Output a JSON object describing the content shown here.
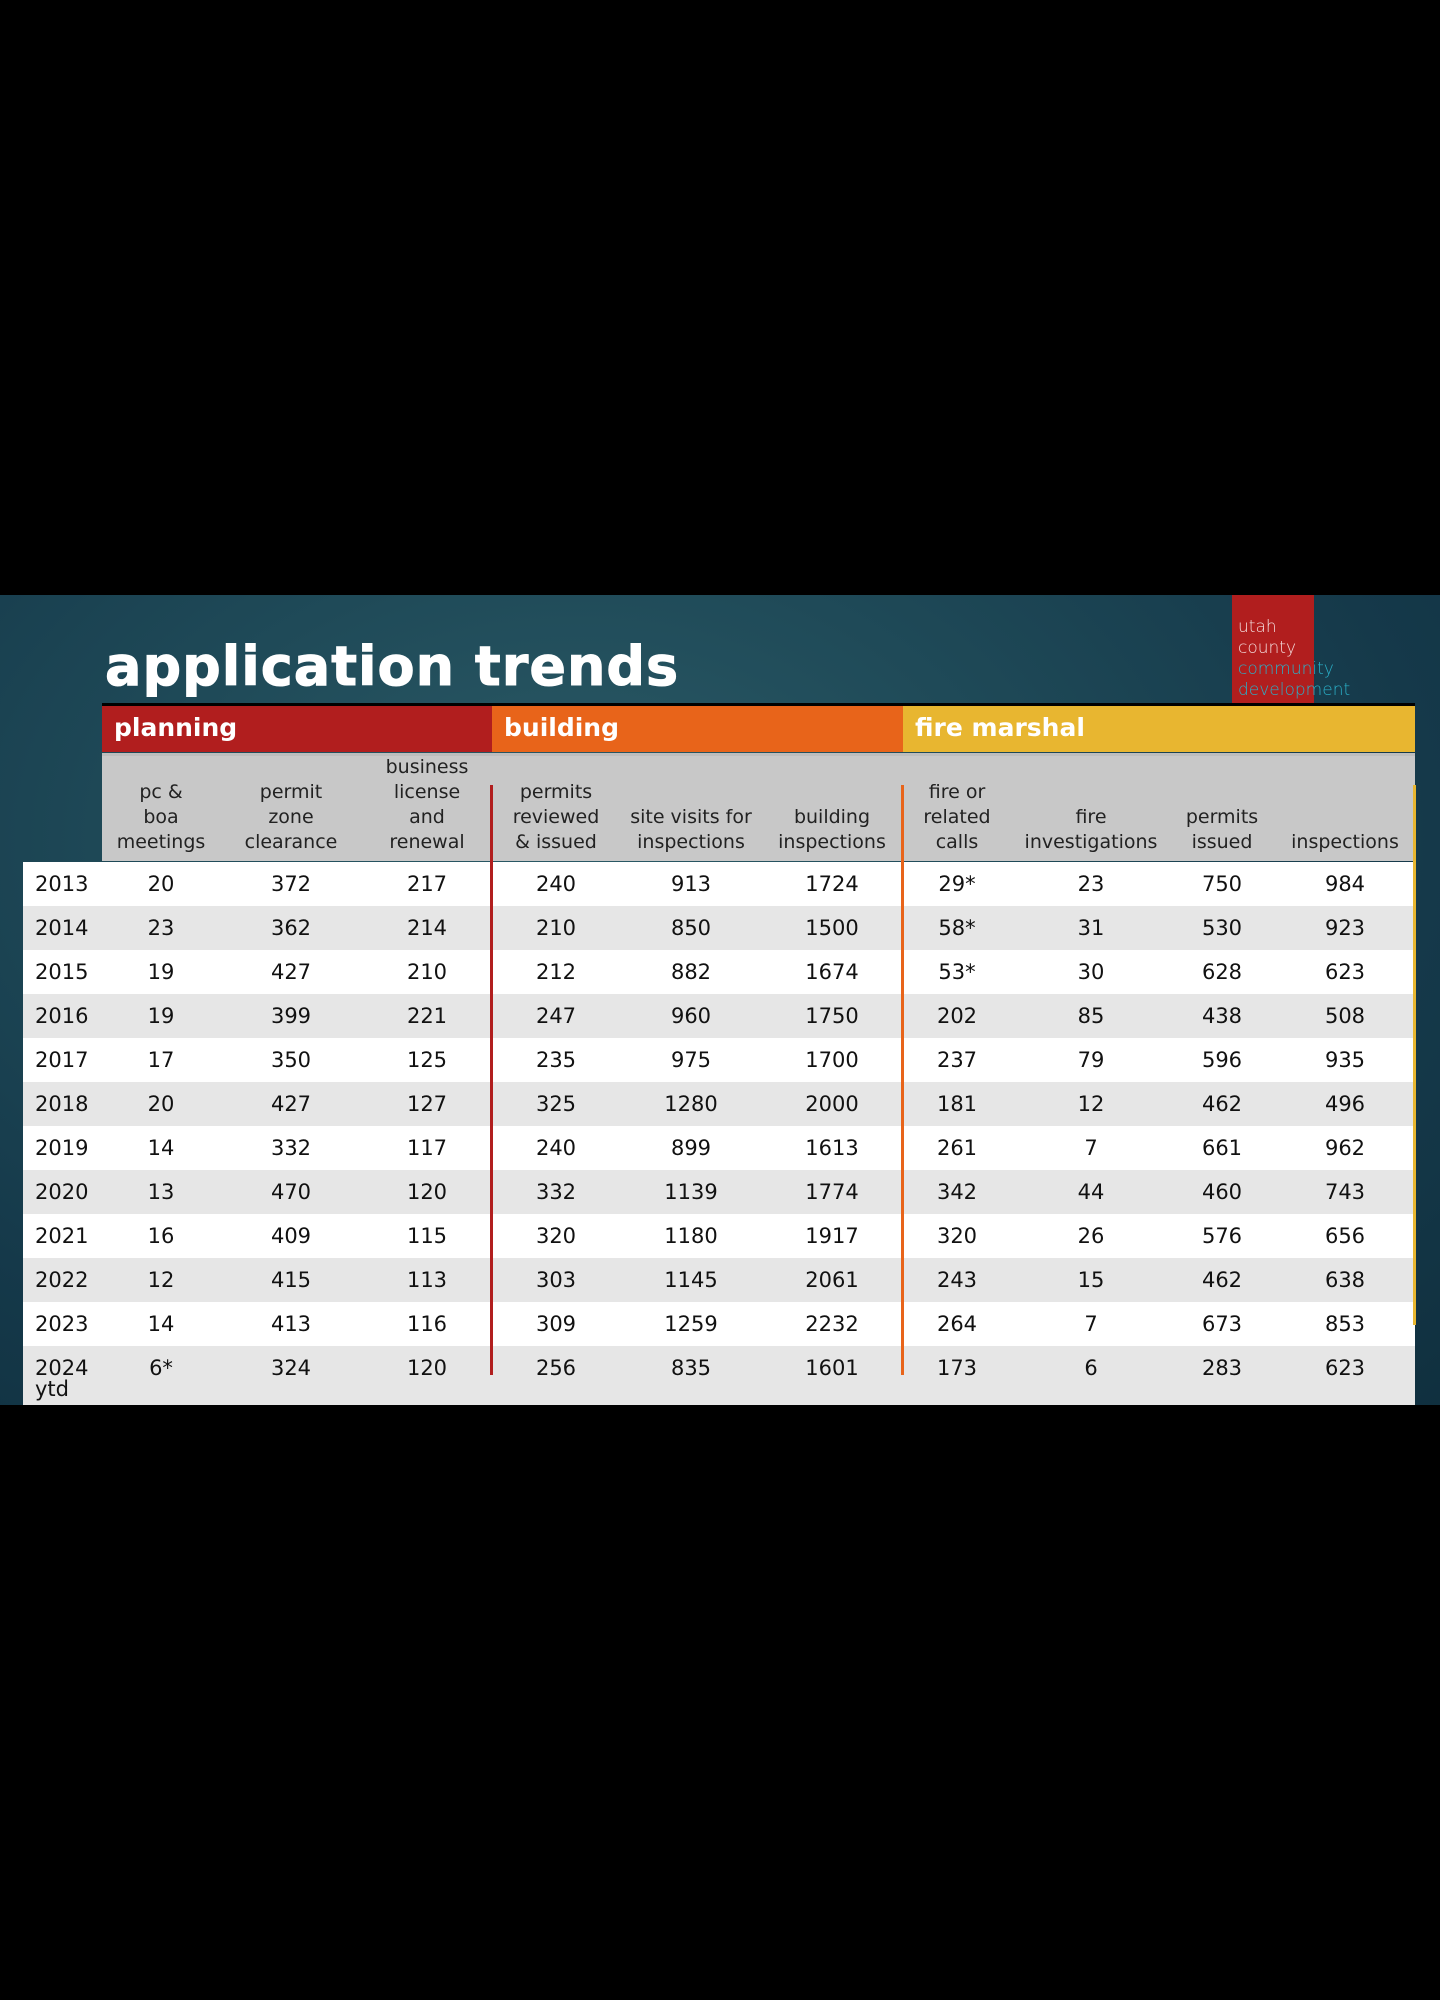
{
  "title": "application trends",
  "logo": {
    "line1": "utah",
    "line2": "county",
    "line3": "community",
    "line4": "development"
  },
  "categories": {
    "planning": "planning",
    "building": "building",
    "fire": "fire marshal"
  },
  "headers": [
    "pc &\nboa\nmeetings",
    "permit\nzone\nclearance",
    "business\nlicense\nand\nrenewal",
    "permits\nreviewed\n& issued",
    "site visits for\ninspections",
    "building\ninspections",
    "fire or\nrelated\ncalls",
    "fire\ninvestigations",
    "permits\nissued",
    "inspections"
  ],
  "rows": [
    {
      "year": "2013",
      "values": [
        "20",
        "372",
        "217",
        "240",
        "913",
        "1724",
        "29*",
        "23",
        "750",
        "984"
      ]
    },
    {
      "year": "2014",
      "values": [
        "23",
        "362",
        "214",
        "210",
        "850",
        "1500",
        "58*",
        "31",
        "530",
        "923"
      ]
    },
    {
      "year": "2015",
      "values": [
        "19",
        "427",
        "210",
        "212",
        "882",
        "1674",
        "53*",
        "30",
        "628",
        "623"
      ]
    },
    {
      "year": "2016",
      "values": [
        "19",
        "399",
        "221",
        "247",
        "960",
        "1750",
        "202",
        "85",
        "438",
        "508"
      ]
    },
    {
      "year": "2017",
      "values": [
        "17",
        "350",
        "125",
        "235",
        "975",
        "1700",
        "237",
        "79",
        "596",
        "935"
      ]
    },
    {
      "year": "2018",
      "values": [
        "20",
        "427",
        "127",
        "325",
        "1280",
        "2000",
        "181",
        "12",
        "462",
        "496"
      ]
    },
    {
      "year": "2019",
      "values": [
        "14",
        "332",
        "117",
        "240",
        "899",
        "1613",
        "261",
        "7",
        "661",
        "962"
      ]
    },
    {
      "year": "2020",
      "values": [
        "13",
        "470",
        "120",
        "332",
        "1139",
        "1774",
        "342",
        "44",
        "460",
        "743"
      ]
    },
    {
      "year": "2021",
      "values": [
        "16",
        "409",
        "115",
        "320",
        "1180",
        "1917",
        "320",
        "26",
        "576",
        "656"
      ]
    },
    {
      "year": "2022",
      "values": [
        "12",
        "415",
        "113",
        "303",
        "1145",
        "2061",
        "243",
        "15",
        "462",
        "638"
      ]
    },
    {
      "year": "2023",
      "values": [
        "14",
        "413",
        "116",
        "309",
        "1259",
        "2232",
        "264",
        "7",
        "673",
        "853"
      ]
    },
    {
      "year": "2024",
      "year_sub": "ytd",
      "values": [
        "6*",
        "324",
        "120",
        "256",
        "835",
        "1601",
        "173",
        "6",
        "283",
        "623"
      ]
    }
  ],
  "colors": {
    "planning": "#b11e1e",
    "building": "#e8641a",
    "fire": "#e8b630"
  }
}
